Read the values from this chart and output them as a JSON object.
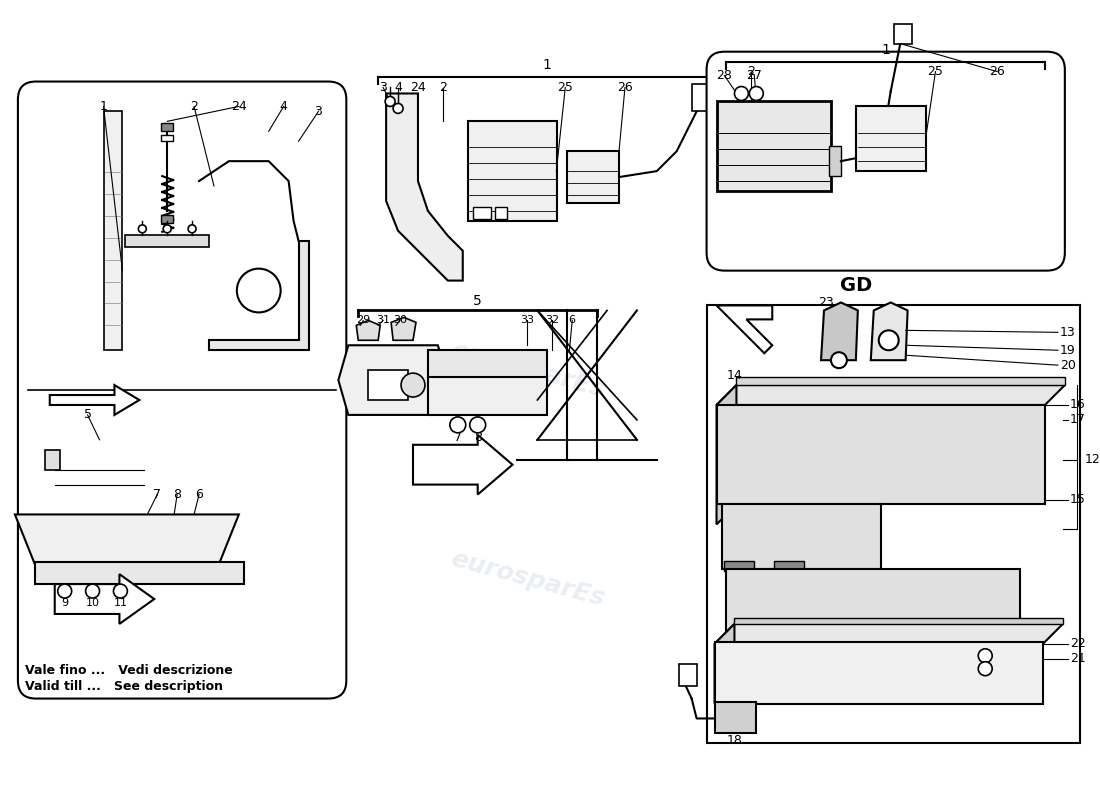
{
  "background_color": "#ffffff",
  "watermark_text": "eurosparEs",
  "watermark_color": "#b8c8d8",
  "watermark_opacity": 0.3,
  "footer_text_line1": "Vale fino ...   Vedi descrizione",
  "footer_text_line2": "Valid till ...   See description",
  "label_GD": "GD"
}
